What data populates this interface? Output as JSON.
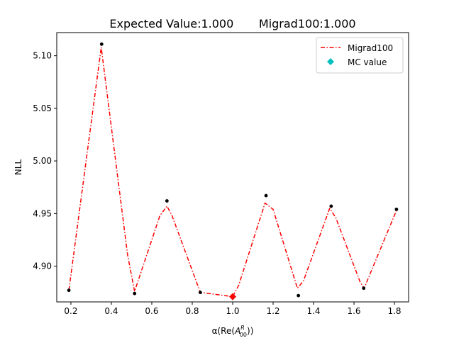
{
  "chart_data": {
    "type": "line",
    "title": "Expected Value:1.000       Migrad100:1.000",
    "xlabel": {
      "prefix": "α(Re(",
      "symbol": "A",
      "superscript": "R",
      "subscript": "00",
      "suffix": "))"
    },
    "ylabel": "NLL",
    "xlim": [
      0.13,
      1.87
    ],
    "ylim": [
      4.866,
      5.122
    ],
    "x_ticks": [
      0.2,
      0.4,
      0.6,
      0.8,
      1.0,
      1.2,
      1.4,
      1.6,
      1.8
    ],
    "x_tick_labels": [
      "0.2",
      "0.4",
      "0.6",
      "0.8",
      "1.0",
      "1.2",
      "1.4",
      "1.6",
      "1.8"
    ],
    "y_ticks": [
      4.9,
      4.95,
      5.0,
      5.05,
      5.1
    ],
    "y_tick_labels": [
      "4.90",
      "4.95",
      "5.00",
      "5.05",
      "5.10"
    ],
    "grid": false,
    "legend_position": "top-right",
    "series": [
      {
        "name": "Migrad100",
        "kind": "line",
        "style": "dash-dot",
        "color": "#ff0000",
        "x": [
          0.19,
          0.35,
          0.48,
          0.515,
          0.64,
          0.675,
          0.7,
          0.84,
          1.0,
          1.03,
          1.16,
          1.2,
          1.32,
          1.35,
          1.48,
          1.51,
          1.63,
          1.65,
          1.81
        ],
        "y": [
          4.877,
          5.108,
          4.911,
          4.876,
          4.948,
          4.957,
          4.948,
          4.875,
          4.871,
          4.882,
          4.96,
          4.954,
          4.879,
          4.886,
          4.955,
          4.946,
          4.885,
          4.879,
          4.953
        ]
      },
      {
        "name": "MC value",
        "kind": "marker",
        "marker": "diamond",
        "color": "#00bfbf",
        "x": [
          1.0
        ],
        "y": [
          4.871
        ]
      }
    ],
    "scan_points": {
      "color": "#000000",
      "x": [
        0.19,
        0.352,
        0.515,
        0.675,
        0.84,
        1.0,
        1.165,
        1.325,
        1.487,
        1.648,
        1.81
      ],
      "y": [
        4.877,
        5.111,
        4.874,
        4.962,
        4.875,
        4.871,
        4.967,
        4.872,
        4.957,
        4.879,
        4.954
      ]
    },
    "fit_marker": {
      "marker": "diamond",
      "color": "#ff0000",
      "x": 1.0,
      "y": 4.871
    }
  }
}
